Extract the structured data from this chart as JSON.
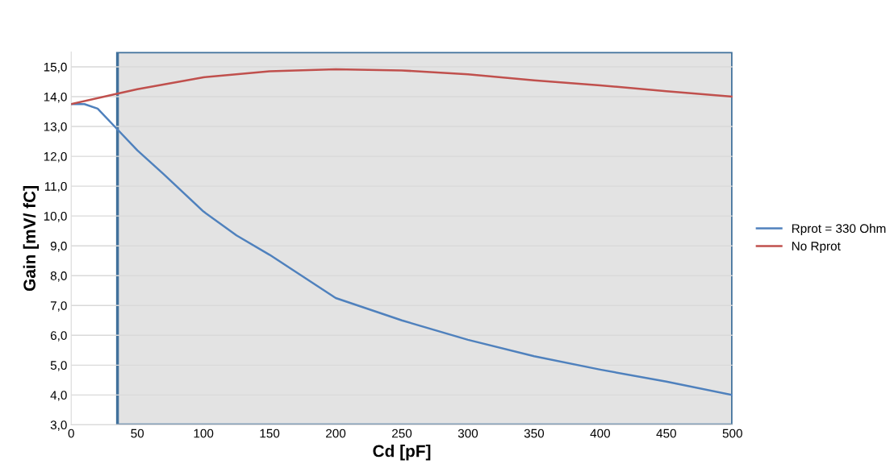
{
  "chart_data": {
    "type": "line",
    "xlabel": "Cd [pF]",
    "ylabel": "Gain [mV/ fC]",
    "series": [
      {
        "name": "Rprot = 330 Ohm",
        "color": "#4f81bd",
        "x": [
          0,
          10,
          20,
          35,
          50,
          70,
          100,
          125,
          150,
          200,
          250,
          300,
          350,
          400,
          450,
          500
        ],
        "values": [
          13.75,
          13.75,
          13.6,
          12.9,
          12.2,
          11.4,
          10.15,
          9.35,
          8.7,
          7.25,
          6.5,
          5.85,
          5.3,
          4.85,
          4.45,
          4.0
        ]
      },
      {
        "name": "No Rprot",
        "color": "#c0504d",
        "x": [
          0,
          35,
          50,
          100,
          150,
          200,
          250,
          300,
          350,
          400,
          450,
          500
        ],
        "values": [
          13.75,
          14.1,
          14.25,
          14.65,
          14.85,
          14.92,
          14.88,
          14.75,
          14.55,
          14.38,
          14.18,
          14.0
        ]
      }
    ],
    "xlim": [
      0,
      500
    ],
    "xticks": [
      0,
      50,
      100,
      150,
      200,
      250,
      300,
      350,
      400,
      450,
      500
    ],
    "ylim": [
      3,
      15.5
    ],
    "yticks": [
      {
        "value": 3,
        "label": "3,0"
      },
      {
        "value": 4,
        "label": "4,0"
      },
      {
        "value": 5,
        "label": "5,0"
      },
      {
        "value": 6,
        "label": "6,0"
      },
      {
        "value": 7,
        "label": "7,0"
      },
      {
        "value": 8,
        "label": "8,0"
      },
      {
        "value": 9,
        "label": "9,0"
      },
      {
        "value": 10,
        "label": "10,0"
      },
      {
        "value": 11,
        "label": "11,0"
      },
      {
        "value": 12,
        "label": "12,0"
      },
      {
        "value": 13,
        "label": "13,0"
      },
      {
        "value": 14,
        "label": "14,0"
      },
      {
        "value": 15,
        "label": "15,0"
      }
    ],
    "bands": [
      {
        "axis": "x",
        "from": 35,
        "to": 500,
        "color": "#e3e3e3"
      }
    ],
    "grid": "y",
    "legend": "right",
    "marker": "none",
    "line_style": "solid"
  }
}
